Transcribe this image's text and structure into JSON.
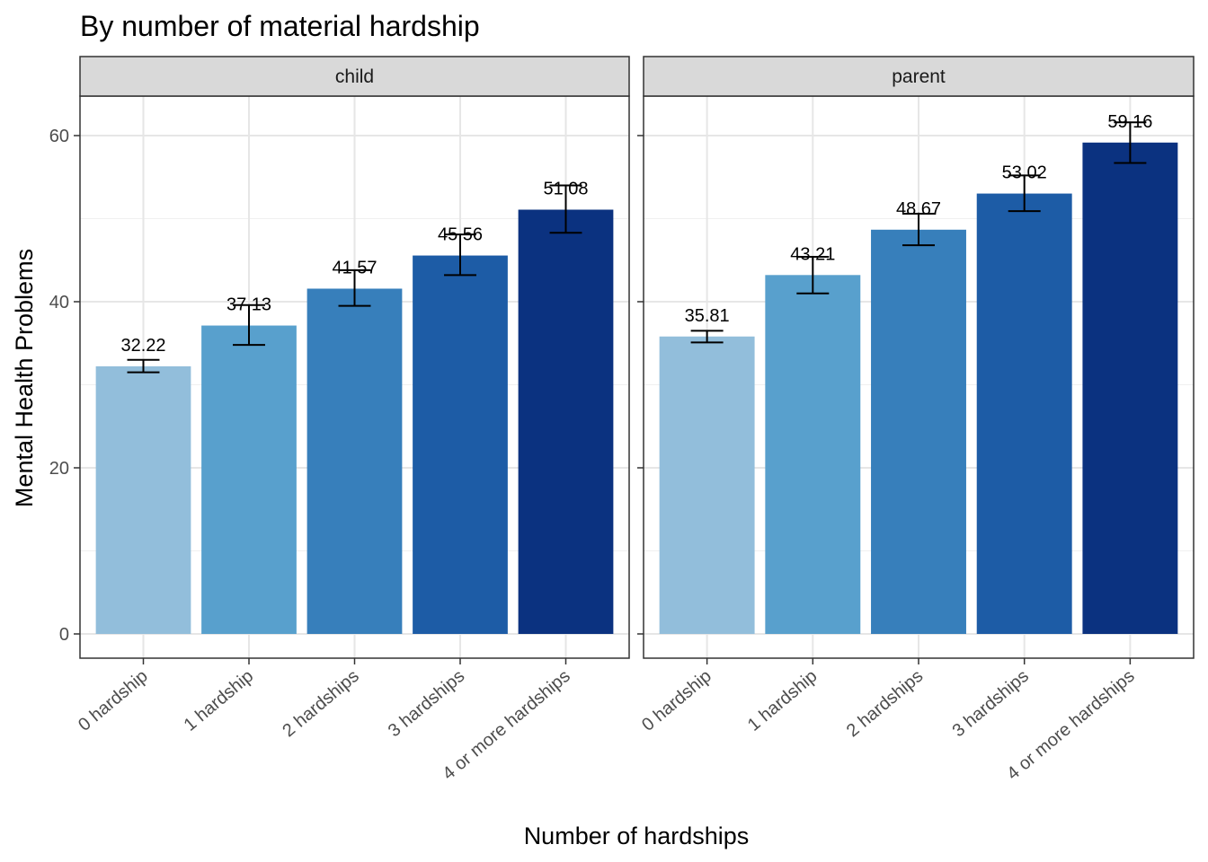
{
  "chart_data": {
    "type": "bar",
    "title": "By number of material hardship",
    "xlabel": "Number of hardships",
    "ylabel": "Mental Health Problems",
    "ylim": [
      0,
      65
    ],
    "yticks": [
      0,
      20,
      40,
      60
    ],
    "yticks_labels": [
      "0",
      "20",
      "40",
      "60"
    ],
    "grid": true,
    "legend": "none",
    "categories": [
      "0 hardship",
      "1 hardship",
      "2 hardships",
      "3 hardships",
      "4 or more hardships"
    ],
    "bar_colors": [
      "#92bedb",
      "#58a0cd",
      "#377fbb",
      "#1d5ca6",
      "#0b3280"
    ],
    "panels": [
      {
        "name": "child",
        "values": [
          32.22,
          37.13,
          41.57,
          45.56,
          51.08
        ],
        "labels": [
          "32.22",
          "37.13",
          "41.57",
          "45.56",
          "51.08"
        ],
        "error_low": [
          31.5,
          34.8,
          39.5,
          43.2,
          48.3
        ],
        "error_high": [
          33.0,
          39.6,
          43.8,
          48.1,
          54.0
        ]
      },
      {
        "name": "parent",
        "values": [
          35.81,
          43.21,
          48.67,
          53.02,
          59.16
        ],
        "labels": [
          "35.81",
          "43.21",
          "48.67",
          "53.02",
          "59.16"
        ],
        "error_low": [
          35.1,
          41.0,
          46.8,
          50.9,
          56.7
        ],
        "error_high": [
          36.5,
          45.4,
          50.6,
          55.2,
          61.6
        ]
      }
    ]
  }
}
